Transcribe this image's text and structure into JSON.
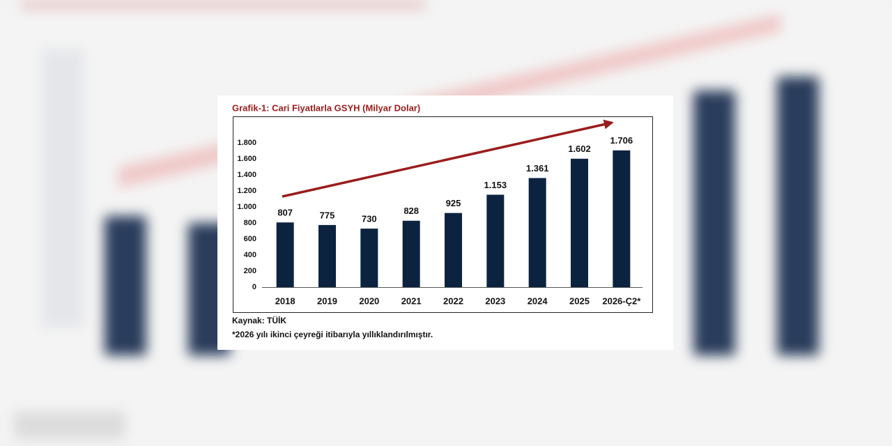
{
  "chart_data": {
    "type": "bar",
    "title": "Grafik-1: Cari Fiyatlarla GSYH (Milyar Dolar)",
    "categories": [
      "2018",
      "2019",
      "2020",
      "2021",
      "2022",
      "2023",
      "2024",
      "2025",
      "2026-Ç2*"
    ],
    "values": [
      807,
      775,
      730,
      828,
      925,
      1153,
      1361,
      1602,
      1706
    ],
    "value_labels": [
      "807",
      "775",
      "730",
      "828",
      "925",
      "1.153",
      "1.361",
      "1.602",
      "1.706"
    ],
    "color": "#0c2340",
    "ylim": [
      0,
      1800
    ],
    "yticks": [
      0,
      200,
      400,
      600,
      800,
      {
        "value": 1000,
        "label": "1.000"
      },
      {
        "value": 1200,
        "label": "1.200"
      },
      {
        "value": 1400,
        "label": "1.400"
      },
      {
        "value": 1600,
        "label": "1.600"
      },
      {
        "value": 1800,
        "label": "1.800"
      }
    ],
    "grid": false,
    "source": "Kaynak: TÜİK",
    "note": "*2026 yılı ikinci çeyreği itibarıyla yıllıklandırılmıştır."
  }
}
